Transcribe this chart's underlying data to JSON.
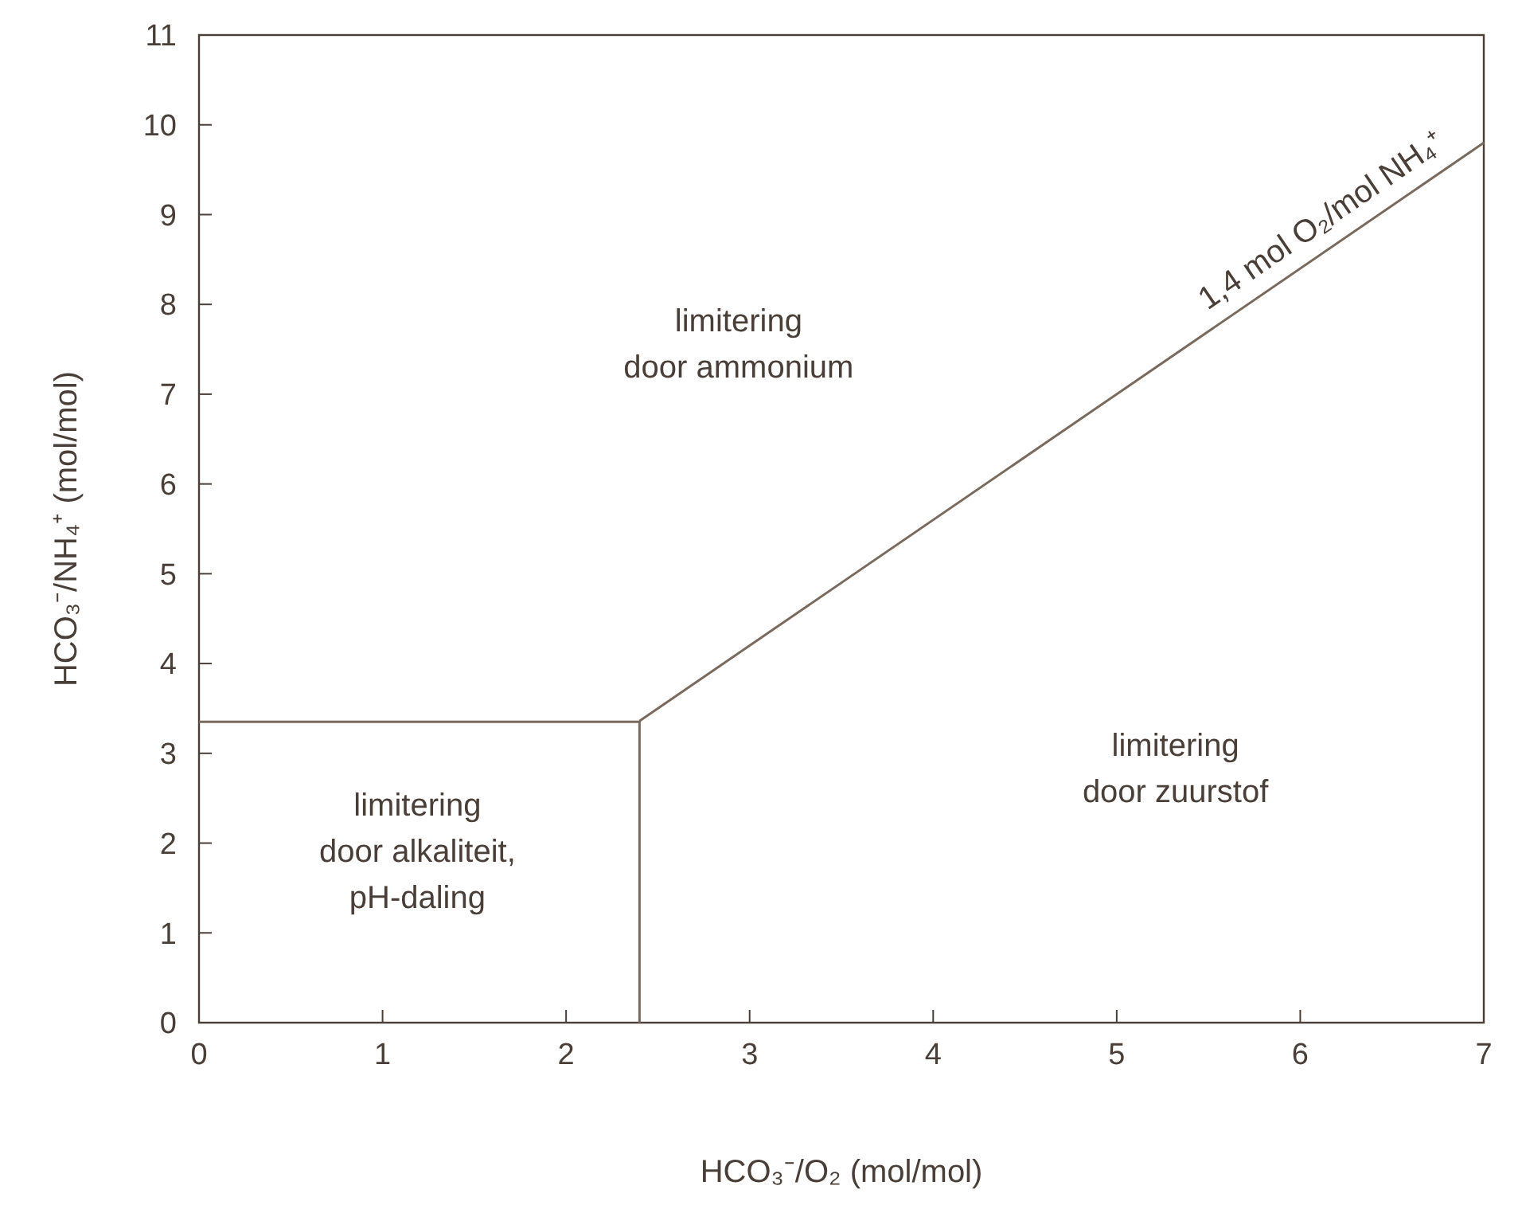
{
  "chart_data": {
    "type": "line",
    "xlabel": "HCO₃⁻/O₂ (mol/mol)",
    "ylabel": "HCO₃⁻/NH₄⁺ (mol/mol)",
    "xlim": [
      0,
      7
    ],
    "xticks": [
      0,
      1,
      2,
      3,
      4,
      5,
      6,
      7
    ],
    "ylim": [
      0,
      11
    ],
    "yticks": [
      0,
      1,
      2,
      3,
      4,
      5,
      6,
      7,
      8,
      9,
      10,
      11
    ],
    "grid": false,
    "marker": "none",
    "line_style": "solid",
    "series": [
      {
        "color": "#7a6a5e",
        "x": [
          0,
          2.4,
          2.4
        ],
        "values": [
          3.35,
          3.35,
          0
        ]
      },
      {
        "color": "#7a6a5e",
        "x": [
          2.4,
          7
        ],
        "values": [
          3.36,
          9.8
        ]
      }
    ],
    "annotations": [
      "limitering\ndoor ammonium",
      "limitering\ndoor zuurstof",
      "limitering\ndoor alkaliteit,\npH-daling",
      {
        "text": "1,4 mol O₂/mol NH₄⁺",
        "x": 6.2,
        "y": 8.68
      }
    ]
  }
}
